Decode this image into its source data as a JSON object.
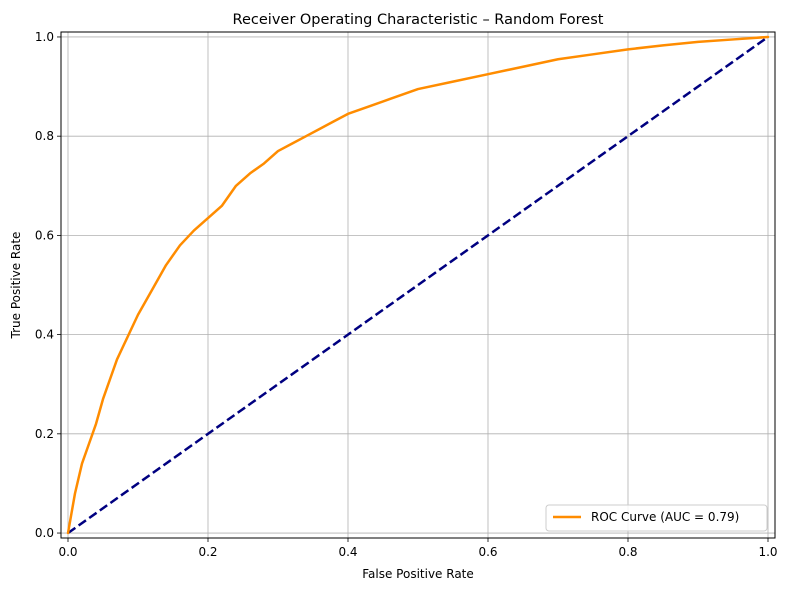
{
  "chart_data": {
    "type": "line",
    "title": "Receiver Operating Characteristic – Random Forest",
    "xlabel": "False Positive Rate",
    "ylabel": "True Positive Rate",
    "xlim": [
      -0.01,
      1.01
    ],
    "ylim": [
      -0.01,
      1.01
    ],
    "xticks": [
      0.0,
      0.2,
      0.4,
      0.6,
      0.8,
      1.0
    ],
    "yticks": [
      0.0,
      0.2,
      0.4,
      0.6,
      0.8,
      1.0
    ],
    "xtick_labels": [
      "0.0",
      "0.2",
      "0.4",
      "0.6",
      "0.8",
      "1.0"
    ],
    "ytick_labels": [
      "0.0",
      "0.2",
      "0.4",
      "0.6",
      "0.8",
      "1.0"
    ],
    "grid": true,
    "legend_position": "lower-right",
    "series": [
      {
        "name": "ROC Curve (AUC = 0.79)",
        "color": "#ff8c00",
        "style": "solid",
        "x": [
          0.0,
          0.005,
          0.01,
          0.02,
          0.03,
          0.04,
          0.05,
          0.06,
          0.07,
          0.08,
          0.09,
          0.1,
          0.12,
          0.14,
          0.16,
          0.18,
          0.2,
          0.22,
          0.24,
          0.26,
          0.28,
          0.3,
          0.32,
          0.34,
          0.36,
          0.38,
          0.4,
          0.43,
          0.46,
          0.5,
          0.55,
          0.6,
          0.65,
          0.7,
          0.75,
          0.8,
          0.85,
          0.9,
          0.95,
          1.0
        ],
        "y": [
          0.0,
          0.04,
          0.08,
          0.14,
          0.18,
          0.22,
          0.27,
          0.31,
          0.35,
          0.38,
          0.41,
          0.44,
          0.49,
          0.54,
          0.58,
          0.61,
          0.635,
          0.66,
          0.7,
          0.725,
          0.745,
          0.77,
          0.785,
          0.8,
          0.815,
          0.83,
          0.845,
          0.86,
          0.875,
          0.895,
          0.91,
          0.925,
          0.94,
          0.955,
          0.965,
          0.975,
          0.983,
          0.99,
          0.995,
          1.0
        ]
      },
      {
        "name": "",
        "color": "#000080",
        "style": "dashed",
        "x": [
          0.0,
          1.0
        ],
        "y": [
          0.0,
          1.0
        ]
      }
    ]
  }
}
